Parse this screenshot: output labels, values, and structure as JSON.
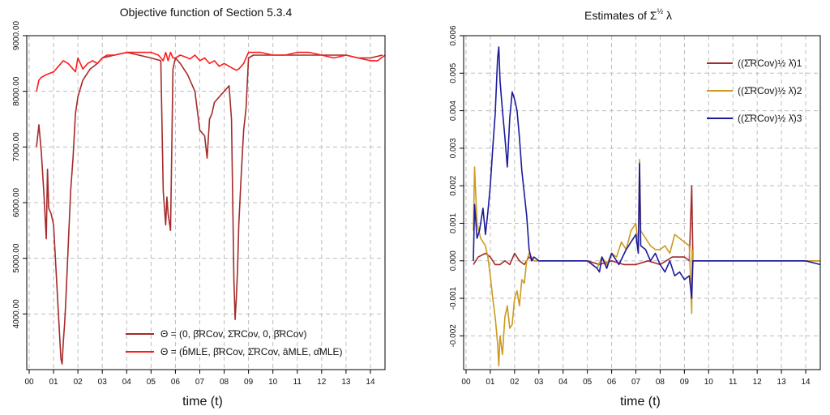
{
  "chart_data": [
    {
      "type": "line",
      "title": "Objective function of Section 5.3.4",
      "xlabel": "time (t)",
      "ylabel": "",
      "x_ticks": [
        "00",
        "01",
        "02",
        "03",
        "04",
        "05",
        "06",
        "07",
        "08",
        "09",
        "10",
        "11",
        "12",
        "13",
        "14"
      ],
      "xlim": [
        -0.1,
        14.6
      ],
      "ylim": [
        3000,
        9000
      ],
      "y_ticks": [
        4000,
        5000,
        6000,
        7000,
        8000,
        9000
      ],
      "y_tick_labels": [
        "4000.00",
        "5000.00",
        "6000.00",
        "7000.00",
        "8000.00",
        "9000.00"
      ],
      "legend_position": "bottom-right",
      "series": [
        {
          "name": "Θ = (0, β̂RCov, Σ̂RCov, 0, β̂RCov)",
          "color": "#a52a2a",
          "x": [
            0.3,
            0.4,
            0.5,
            0.6,
            0.7,
            0.75,
            0.8,
            0.9,
            1.0,
            1.1,
            1.2,
            1.3,
            1.35,
            1.4,
            1.45,
            1.5,
            1.6,
            1.7,
            1.8,
            1.9,
            2.0,
            2.2,
            2.5,
            2.8,
            3.0,
            3.5,
            4.0,
            4.5,
            5.0,
            5.4,
            5.5,
            5.55,
            5.6,
            5.65,
            5.7,
            5.8,
            5.9,
            5.95,
            6.0,
            6.2,
            6.5,
            6.8,
            7.0,
            7.2,
            7.3,
            7.4,
            7.5,
            7.6,
            7.8,
            8.0,
            8.2,
            8.3,
            8.4,
            8.45,
            8.5,
            8.55,
            8.6,
            8.7,
            8.8,
            8.9,
            9.0,
            9.2,
            9.5,
            10.0,
            11.0,
            12.0,
            13.0,
            13.5,
            14.0,
            14.5
          ],
          "y": [
            7000,
            7400,
            6900,
            6200,
            5350,
            6600,
            5900,
            5800,
            5600,
            4800,
            4000,
            3200,
            3100,
            3500,
            3800,
            4200,
            5200,
            6200,
            6800,
            7600,
            7900,
            8200,
            8400,
            8500,
            8600,
            8650,
            8700,
            8650,
            8600,
            8550,
            6200,
            5900,
            5600,
            6100,
            5800,
            5500,
            8400,
            8500,
            8600,
            8500,
            8300,
            8000,
            7300,
            7200,
            6800,
            7500,
            7600,
            7800,
            7900,
            8000,
            8100,
            7500,
            4600,
            3900,
            4300,
            4800,
            5600,
            6500,
            7300,
            7700,
            8600,
            8650,
            8650,
            8650,
            8650,
            8650,
            8650,
            8600,
            8600,
            8650
          ]
        },
        {
          "name": "Θ = (b̂MLE, β̂RCov, Σ̂RCov, âMLE, α̂MLE)",
          "color": "#ff1a1a",
          "x": [
            0.3,
            0.4,
            0.5,
            0.7,
            1.0,
            1.2,
            1.4,
            1.6,
            1.8,
            1.9,
            2.0,
            2.2,
            2.4,
            2.6,
            2.8,
            3.0,
            3.2,
            3.5,
            3.8,
            4.0,
            4.5,
            5.0,
            5.3,
            5.5,
            5.6,
            5.7,
            5.8,
            5.9,
            6.0,
            6.2,
            6.4,
            6.6,
            6.8,
            7.0,
            7.2,
            7.4,
            7.6,
            7.8,
            8.0,
            8.2,
            8.4,
            8.5,
            8.6,
            8.8,
            9.0,
            9.2,
            9.5,
            10.0,
            10.5,
            11.0,
            11.5,
            12.0,
            12.5,
            13.0,
            13.5,
            14.0,
            14.3,
            14.6
          ],
          "y": [
            8000,
            8200,
            8250,
            8300,
            8350,
            8450,
            8550,
            8500,
            8400,
            8350,
            8600,
            8400,
            8500,
            8550,
            8500,
            8600,
            8650,
            8650,
            8680,
            8700,
            8700,
            8700,
            8650,
            8550,
            8700,
            8550,
            8700,
            8600,
            8600,
            8650,
            8620,
            8580,
            8650,
            8550,
            8600,
            8500,
            8550,
            8450,
            8500,
            8450,
            8400,
            8380,
            8400,
            8500,
            8700,
            8700,
            8700,
            8650,
            8650,
            8700,
            8700,
            8650,
            8600,
            8650,
            8600,
            8550,
            8550,
            8650
          ]
        }
      ]
    },
    {
      "type": "line",
      "title_prefix": "Estimates of ",
      "title_sigma": "Σ",
      "title_exp": "½",
      "title_lambda": " λ",
      "xlabel": "time (t)",
      "ylabel": "",
      "x_ticks": [
        "00",
        "01",
        "02",
        "03",
        "04",
        "05",
        "06",
        "07",
        "08",
        "09",
        "10",
        "11",
        "12",
        "13",
        "14"
      ],
      "xlim": [
        -0.1,
        14.6
      ],
      "ylim": [
        -0.0029,
        0.006
      ],
      "y_ticks": [
        -0.002,
        -0.001,
        0.0,
        0.001,
        0.002,
        0.003,
        0.004,
        0.005,
        0.006
      ],
      "y_tick_labels": [
        "-0.002",
        "-0.001",
        "0.000",
        "0.001",
        "0.002",
        "0.003",
        "0.004",
        "0.005",
        "0.006"
      ],
      "legend_position": "top-right",
      "series": [
        {
          "name": "((Σ̂RCov)½ λ̂)1",
          "legend_sub": "1",
          "color": "#a52a2a",
          "x": [
            0.3,
            0.5,
            0.8,
            1.0,
            1.2,
            1.4,
            1.6,
            1.8,
            2.0,
            2.2,
            2.4,
            2.6,
            2.8,
            3.0,
            3.5,
            4.0,
            5.0,
            5.5,
            6.0,
            6.5,
            7.0,
            7.5,
            8.0,
            8.5,
            9.0,
            9.2,
            9.3,
            9.35,
            9.4,
            10.0,
            11.0,
            12.0,
            13.0,
            14.0,
            14.6
          ],
          "y": [
            -0.0001,
            0.0001,
            0.0002,
            0.0001,
            -0.0001,
            -0.0001,
            0.0,
            -0.0001,
            0.0002,
            0.0,
            -0.0001,
            0.0001,
            0.0,
            0.0,
            0.0,
            0.0,
            0.0,
            -0.0001,
            0.0,
            -0.0001,
            -0.0001,
            0.0,
            -0.0001,
            0.0001,
            0.0001,
            0.0,
            0.002,
            0.0,
            0.0,
            0.0,
            0.0,
            0.0,
            0.0,
            0.0,
            0.0
          ]
        },
        {
          "name": "((Σ̂RCov)½ λ̂)2",
          "legend_sub": "2",
          "color": "#cc9a1f",
          "x": [
            0.3,
            0.35,
            0.45,
            0.6,
            0.8,
            0.9,
            1.0,
            1.1,
            1.2,
            1.3,
            1.35,
            1.4,
            1.5,
            1.6,
            1.7,
            1.8,
            1.9,
            2.0,
            2.1,
            2.2,
            2.3,
            2.4,
            2.5,
            2.6,
            2.7,
            2.8,
            3.0,
            3.5,
            4.0,
            5.0,
            5.4,
            5.6,
            5.8,
            6.0,
            6.2,
            6.4,
            6.6,
            6.8,
            7.0,
            7.1,
            7.15,
            7.2,
            7.4,
            7.6,
            7.8,
            8.0,
            8.2,
            8.4,
            8.6,
            8.8,
            9.0,
            9.2,
            9.3,
            9.32,
            9.35,
            9.4,
            10.0,
            12.0,
            14.0,
            14.6
          ],
          "y": [
            0.0008,
            0.0025,
            0.001,
            0.0006,
            0.0004,
            0.0001,
            -0.0004,
            -0.001,
            -0.0015,
            -0.0022,
            -0.0028,
            -0.002,
            -0.0025,
            -0.0015,
            -0.0012,
            -0.0018,
            -0.0017,
            -0.001,
            -0.0008,
            -0.0012,
            -0.0005,
            -0.0006,
            0.0,
            0.0002,
            0.0001,
            0.0,
            0.0,
            0.0,
            0.0,
            0.0,
            -0.0002,
            0.0001,
            -0.0001,
            0.0002,
            0.0001,
            0.0005,
            0.0003,
            0.0008,
            0.001,
            0.0004,
            0.0027,
            0.0008,
            0.0006,
            0.0004,
            0.0003,
            0.0003,
            0.0004,
            0.0002,
            0.0007,
            0.0006,
            0.0005,
            0.0004,
            -0.0014,
            0.0003,
            0.0,
            0.0,
            0.0,
            0.0,
            0.0,
            0.0
          ]
        },
        {
          "name": "((Σ̂RCov)½ λ̂)3",
          "legend_sub": "3",
          "color": "#1a1a9c",
          "x": [
            0.3,
            0.35,
            0.45,
            0.55,
            0.7,
            0.8,
            0.9,
            1.0,
            1.1,
            1.2,
            1.3,
            1.35,
            1.4,
            1.5,
            1.6,
            1.7,
            1.8,
            1.9,
            2.0,
            2.1,
            2.2,
            2.3,
            2.4,
            2.5,
            2.6,
            2.7,
            2.8,
            3.0,
            3.5,
            4.0,
            5.0,
            5.4,
            5.5,
            5.6,
            5.8,
            6.0,
            6.3,
            6.6,
            6.8,
            7.0,
            7.1,
            7.15,
            7.2,
            7.4,
            7.6,
            7.8,
            8.0,
            8.2,
            8.4,
            8.6,
            8.8,
            9.0,
            9.2,
            9.3,
            9.35,
            9.4,
            10.0,
            11.0,
            12.0,
            13.0,
            14.0,
            14.6
          ],
          "y": [
            0.0,
            0.0015,
            0.0006,
            0.0008,
            0.0014,
            0.0007,
            0.0013,
            0.002,
            0.003,
            0.0039,
            0.0054,
            0.0057,
            0.0048,
            0.004,
            0.0033,
            0.0025,
            0.0038,
            0.0045,
            0.0043,
            0.004,
            0.0033,
            0.0024,
            0.0018,
            0.0012,
            0.0003,
            0.0,
            0.0001,
            0.0,
            0.0,
            0.0,
            0.0,
            -0.0002,
            -0.0003,
            0.0001,
            -0.0002,
            0.0002,
            -0.0001,
            0.0003,
            0.0005,
            0.0007,
            0.0002,
            0.0026,
            0.0004,
            0.0003,
            0.0,
            0.0002,
            -0.0001,
            -0.0003,
            0.0,
            -0.0004,
            -0.0003,
            -0.0005,
            -0.0004,
            -0.001,
            0.0,
            0.0,
            0.0,
            0.0,
            0.0,
            0.0,
            0.0,
            -0.0001
          ]
        }
      ]
    }
  ]
}
